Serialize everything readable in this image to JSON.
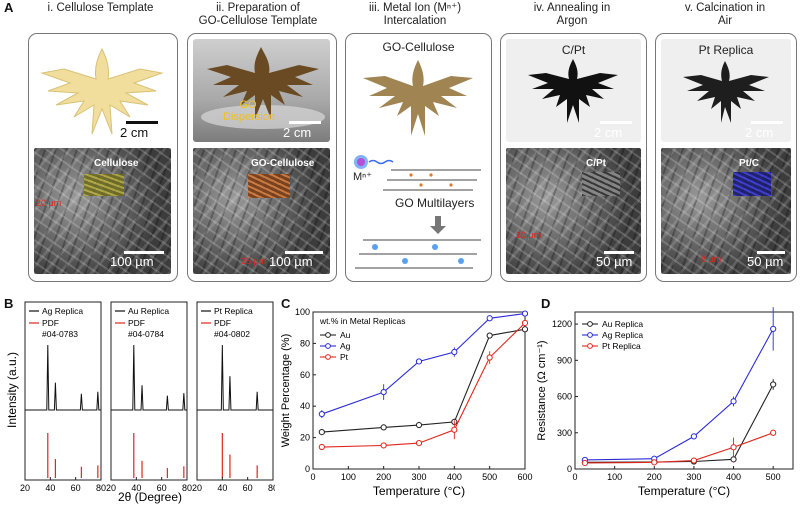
{
  "panel_a": {
    "letter": "A",
    "steps": [
      {
        "title_lines": [
          "i. Cellulose Template"
        ],
        "photo_label": "",
        "photo_scale": "2 cm",
        "sem_label": "Cellulose",
        "sem_scale": "100 µm",
        "sem_note": "20 µm"
      },
      {
        "title_lines": [
          "ii. Preparation of",
          "GO-Cellulose Template"
        ],
        "photo_label": "GO Dispersion",
        "photo_scale": "2 cm",
        "sem_label": "GO-Cellulose",
        "sem_scale": "100 µm",
        "sem_note": "25 µm"
      },
      {
        "title_lines": [
          "iii. Metal Ion (Mⁿ⁺)",
          "Intercalation"
        ],
        "photo_label": "GO-Cellulose",
        "photo_scale": "2 cm",
        "ion_label": "Mⁿ⁺",
        "multilayer_label": "GO Multilayers"
      },
      {
        "title_lines": [
          "iv. Annealing in",
          "Argon"
        ],
        "photo_label": "C/Pt",
        "photo_scale": "2 cm",
        "sem_label": "C/Pt",
        "sem_scale": "50 µm",
        "sem_note": "10 µm"
      },
      {
        "title_lines": [
          "v. Calcination in",
          "Air"
        ],
        "photo_label": "Pt Replica",
        "photo_scale": "2 cm",
        "sem_label": "Pt/C",
        "sem_scale": "50 µm",
        "sem_note": "8 µm"
      }
    ]
  },
  "panel_b": {
    "letter": "B",
    "ylabel": "Intensity (a.u.)",
    "xlabel": "2θ (Degree)",
    "x_ticks": [
      "20",
      "40",
      "60",
      "80"
    ],
    "subpanels": [
      {
        "replica": "Ag Replica",
        "pdf": "PDF",
        "pdf_code": "#04-0783"
      },
      {
        "replica": "Au Replica",
        "pdf": "PDF",
        "pdf_code": "#04-0784"
      },
      {
        "replica": "Pt Replica",
        "pdf": "PDF",
        "pdf_code": "#04-0802"
      }
    ]
  },
  "chart_data": [
    {
      "type": "line",
      "panel": "C",
      "title": "",
      "xlabel": "Temperature (°C)",
      "ylabel": "Weight Percentage (%)",
      "legend_title": "wt.% in Metal Replicas",
      "legend_position": "top-left",
      "xlim": [
        0,
        600
      ],
      "ylim": [
        0,
        100
      ],
      "x_ticks": [
        0,
        100,
        200,
        300,
        400,
        500,
        600
      ],
      "y_ticks": [
        0,
        20,
        40,
        60,
        80,
        100
      ],
      "x": [
        25,
        200,
        300,
        400,
        500,
        600
      ],
      "series": [
        {
          "name": "Au",
          "color": "#222222",
          "values": [
            23.5,
            26.5,
            28,
            30,
            85,
            89
          ],
          "errors": [
            1,
            1,
            2,
            2,
            1,
            1
          ]
        },
        {
          "name": "Ag",
          "color": "#2b2bd9",
          "values": [
            35,
            49,
            68.5,
            74.5,
            96,
            99
          ],
          "errors": [
            2.5,
            5,
            1,
            3,
            1,
            1
          ]
        },
        {
          "name": "Pt",
          "color": "#e0261b",
          "values": [
            14,
            15,
            16.5,
            25,
            71,
            93
          ],
          "errors": [
            1,
            1,
            2,
            6,
            4,
            2
          ]
        }
      ]
    },
    {
      "type": "line",
      "panel": "D",
      "title": "",
      "xlabel": "Temperature (°C)",
      "ylabel": "Resistance (Ω cm⁻¹)",
      "legend_position": "top-left",
      "xlim": [
        0,
        550
      ],
      "ylim": [
        0,
        1300
      ],
      "x_ticks": [
        0,
        100,
        200,
        300,
        400,
        500
      ],
      "y_ticks": [
        0,
        300,
        600,
        900,
        1200
      ],
      "x": [
        25,
        200,
        300,
        400,
        500
      ],
      "series": [
        {
          "name": "Au Replica",
          "color": "#222222",
          "values": [
            55,
            58,
            62,
            80,
            700
          ],
          "errors": [
            5,
            5,
            5,
            5,
            45
          ]
        },
        {
          "name": "Ag Replica",
          "color": "#2b2bd9",
          "values": [
            75,
            85,
            270,
            560,
            1160
          ],
          "errors": [
            5,
            5,
            20,
            40,
            180
          ]
        },
        {
          "name": "Pt Replica",
          "color": "#e0261b",
          "values": [
            50,
            55,
            70,
            180,
            300
          ],
          "errors": [
            5,
            5,
            5,
            80,
            25
          ]
        }
      ]
    }
  ],
  "panel_c": {
    "letter": "C"
  },
  "panel_d": {
    "letter": "D"
  },
  "colors": {
    "au": "#222222",
    "ag": "#2b2bd9",
    "pt": "#e0261b",
    "frame": "#777777"
  }
}
